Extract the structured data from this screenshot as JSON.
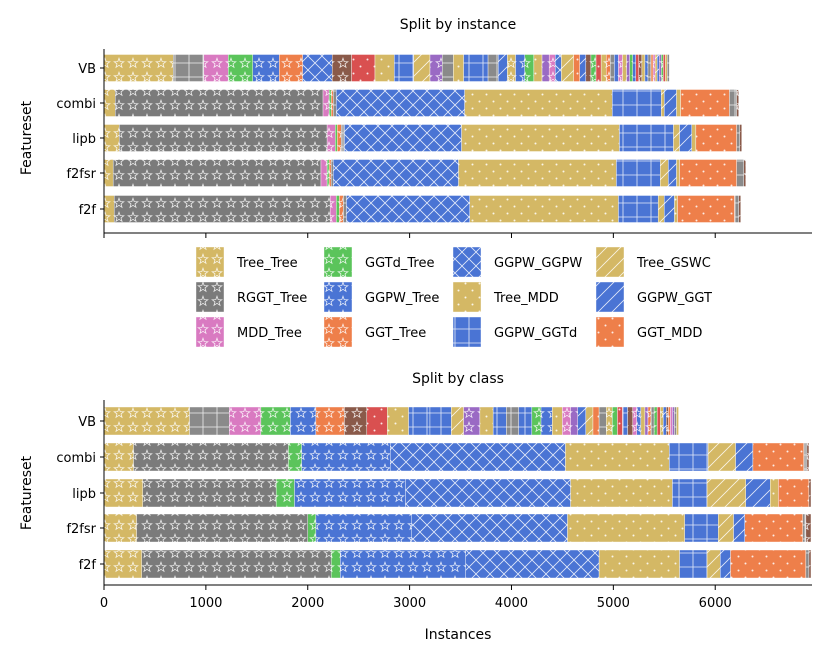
{
  "colors": {
    "Tree_Tree": "#d4b865",
    "RGGT_Tree": "#7b7b7b",
    "MDD_Tree": "#d97ac1",
    "GGTd_Tree": "#5bc45b",
    "GGPW_Tree": "#4a74d4",
    "GGT_Tree": "#ee7f4a",
    "GGPW_GGPW": "#4a74d4",
    "Tree_MDD": "#d4b865",
    "GGPW_GGTd": "#4a74d4",
    "Tree_GSWC": "#d4b865",
    "GGPW_GGT": "#4a74d4",
    "GGT_MDD": "#ee7f4a",
    "misc_brown": "#8a5a4a",
    "misc_red": "#d95050",
    "misc_purple": "#9a6ac4",
    "misc_gray": "#8a8a8a"
  },
  "legend": [
    {
      "label": "Tree_Tree",
      "pattern": "star"
    },
    {
      "label": "RGGT_Tree",
      "pattern": "star"
    },
    {
      "label": "MDD_Tree",
      "pattern": "star"
    },
    {
      "label": "GGTd_Tree",
      "pattern": "star"
    },
    {
      "label": "GGPW_Tree",
      "pattern": "star"
    },
    {
      "label": "GGT_Tree",
      "pattern": "star"
    },
    {
      "label": "GGPW_GGPW",
      "pattern": "cross"
    },
    {
      "label": "Tree_MDD",
      "pattern": "dot"
    },
    {
      "label": "GGPW_GGTd",
      "pattern": "grid"
    },
    {
      "label": "Tree_GSWC",
      "pattern": "diag"
    },
    {
      "label": "GGPW_GGT",
      "pattern": "diag"
    },
    {
      "label": "GGT_MDD",
      "pattern": "dot"
    }
  ],
  "chart_data": [
    {
      "type": "bar",
      "orientation": "horizontal-stacked",
      "title": "Split by instance",
      "ylabel": "Featureset",
      "xlabel": "",
      "xlim": [
        0,
        6950
      ],
      "categories": [
        "VB",
        "combi",
        "lipb",
        "f2fsr",
        "f2f"
      ],
      "rows": {
        "VB": [
          {
            "key": "Tree_Tree",
            "v": 680
          },
          {
            "key": "misc_gray",
            "v": 300
          },
          {
            "key": "MDD_Tree",
            "v": 240
          },
          {
            "key": "GGTd_Tree",
            "v": 240
          },
          {
            "key": "GGPW_Tree",
            "v": 260
          },
          {
            "key": "GGT_Tree",
            "v": 230
          },
          {
            "key": "GGPW_GGPW",
            "v": 290
          },
          {
            "key": "misc_brown",
            "v": 190
          },
          {
            "key": "misc_red",
            "v": 230
          },
          {
            "key": "Tree_MDD",
            "v": 190
          },
          {
            "key": "GGPW_GGTd",
            "v": 190
          },
          {
            "key": "Tree_GSWC",
            "v": 160
          },
          {
            "key": "misc_purple",
            "v": 120
          },
          {
            "key": "misc_gray",
            "v": 110
          },
          {
            "key": "Tree_MDD",
            "v": 100
          },
          {
            "key": "GGPW_GGTd",
            "v": 240
          },
          {
            "key": "misc_gray",
            "v": 100
          },
          {
            "key": "GGPW_GGT",
            "v": 90
          },
          {
            "key": "Tree_Tree",
            "v": 80
          },
          {
            "key": "GGPW_Tree",
            "v": 90
          },
          {
            "key": "GGTd_Tree",
            "v": 90
          },
          {
            "key": "Tree_MDD",
            "v": 80
          },
          {
            "key": "misc_purple",
            "v": 70
          },
          {
            "key": "MDD_Tree",
            "v": 60
          },
          {
            "key": "GGPW_GGPW",
            "v": 60
          },
          {
            "key": "Tree_GSWC",
            "v": 120
          },
          {
            "key": "GGT_MDD",
            "v": 60
          },
          {
            "key": "GGPW_GGT",
            "v": 60
          },
          {
            "key": "misc_brown",
            "v": 50
          },
          {
            "key": "GGTd_Tree",
            "v": 50
          },
          {
            "key": "misc_red",
            "v": 50
          },
          {
            "key": "Tree_Tree",
            "v": 50
          },
          {
            "key": "GGT_Tree",
            "v": 40
          },
          {
            "key": "misc_gray",
            "v": 40
          },
          {
            "key": "GGPW_Tree",
            "v": 40
          },
          {
            "key": "MDD_Tree",
            "v": 40
          },
          {
            "key": "Tree_MDD",
            "v": 40
          },
          {
            "key": "misc_purple",
            "v": 30
          },
          {
            "key": "GGTd_Tree",
            "v": 30
          },
          {
            "key": "GGPW_GGTd",
            "v": 30
          },
          {
            "key": "misc_red",
            "v": 30
          },
          {
            "key": "misc_brown",
            "v": 30
          },
          {
            "key": "Tree_Tree",
            "v": 30
          },
          {
            "key": "GGPW_Tree",
            "v": 30
          },
          {
            "key": "misc_gray",
            "v": 30
          },
          {
            "key": "GGT_MDD",
            "v": 20
          },
          {
            "key": "MDD_Tree",
            "v": 20
          },
          {
            "key": "Tree_GSWC",
            "v": 20
          },
          {
            "key": "GGPW_GGT",
            "v": 20
          },
          {
            "key": "misc_purple",
            "v": 20
          },
          {
            "key": "GGTd_Tree",
            "v": 20
          },
          {
            "key": "misc_red",
            "v": 20
          },
          {
            "key": "Tree_MDD",
            "v": 20
          },
          {
            "key": "misc_gray",
            "v": 20
          }
        ],
        "combi": [
          {
            "key": "Tree_Tree",
            "v": 110
          },
          {
            "key": "RGGT_Tree",
            "v": 2040
          },
          {
            "key": "MDD_Tree",
            "v": 60
          },
          {
            "key": "GGTd_Tree",
            "v": 20
          },
          {
            "key": "GGT_Tree",
            "v": 20
          },
          {
            "key": "misc_gray",
            "v": 30
          },
          {
            "key": "GGPW_GGPW",
            "v": 1260
          },
          {
            "key": "Tree_MDD",
            "v": 1450
          },
          {
            "key": "GGPW_GGTd",
            "v": 480
          },
          {
            "key": "Tree_GSWC",
            "v": 30
          },
          {
            "key": "GGPW_GGT",
            "v": 120
          },
          {
            "key": "Tree_MDD",
            "v": 40
          },
          {
            "key": "GGT_MDD",
            "v": 480
          },
          {
            "key": "misc_gray",
            "v": 70
          },
          {
            "key": "misc_brown",
            "v": 20
          }
        ],
        "lipb": [
          {
            "key": "Tree_Tree",
            "v": 150
          },
          {
            "key": "RGGT_Tree",
            "v": 2040
          },
          {
            "key": "MDD_Tree",
            "v": 80
          },
          {
            "key": "GGTd_Tree",
            "v": 20
          },
          {
            "key": "GGT_Tree",
            "v": 40
          },
          {
            "key": "misc_gray",
            "v": 30
          },
          {
            "key": "GGPW_GGPW",
            "v": 1150
          },
          {
            "key": "Tree_MDD",
            "v": 1550
          },
          {
            "key": "GGPW_GGTd",
            "v": 530
          },
          {
            "key": "Tree_GSWC",
            "v": 60
          },
          {
            "key": "GGPW_GGT",
            "v": 120
          },
          {
            "key": "Tree_MDD",
            "v": 40
          },
          {
            "key": "GGT_MDD",
            "v": 400
          },
          {
            "key": "misc_gray",
            "v": 30
          },
          {
            "key": "misc_brown",
            "v": 20
          }
        ],
        "f2fsr": [
          {
            "key": "Tree_Tree",
            "v": 90
          },
          {
            "key": "RGGT_Tree",
            "v": 2040
          },
          {
            "key": "MDD_Tree",
            "v": 60
          },
          {
            "key": "GGTd_Tree",
            "v": 20
          },
          {
            "key": "GGT_Tree",
            "v": 20
          },
          {
            "key": "misc_gray",
            "v": 20
          },
          {
            "key": "GGPW_GGPW",
            "v": 1230
          },
          {
            "key": "Tree_MDD",
            "v": 1550
          },
          {
            "key": "GGPW_GGTd",
            "v": 430
          },
          {
            "key": "Tree_GSWC",
            "v": 80
          },
          {
            "key": "GGPW_GGT",
            "v": 80
          },
          {
            "key": "Tree_MDD",
            "v": 30
          },
          {
            "key": "GGT_MDD",
            "v": 560
          },
          {
            "key": "misc_gray",
            "v": 70
          },
          {
            "key": "misc_brown",
            "v": 20
          }
        ],
        "f2f": [
          {
            "key": "Tree_Tree",
            "v": 100
          },
          {
            "key": "RGGT_Tree",
            "v": 2120
          },
          {
            "key": "MDD_Tree",
            "v": 60
          },
          {
            "key": "GGTd_Tree",
            "v": 30
          },
          {
            "key": "GGT_Tree",
            "v": 40
          },
          {
            "key": "misc_gray",
            "v": 30
          },
          {
            "key": "GGPW_GGPW",
            "v": 1210
          },
          {
            "key": "Tree_MDD",
            "v": 1460
          },
          {
            "key": "GGPW_GGTd",
            "v": 390
          },
          {
            "key": "Tree_GSWC",
            "v": 60
          },
          {
            "key": "GGPW_GGT",
            "v": 100
          },
          {
            "key": "Tree_MDD",
            "v": 30
          },
          {
            "key": "GGT_MDD",
            "v": 560
          },
          {
            "key": "misc_gray",
            "v": 40
          },
          {
            "key": "misc_brown",
            "v": 20
          }
        ]
      }
    },
    {
      "type": "bar",
      "orientation": "horizontal-stacked",
      "title": "Split by class",
      "ylabel": "Featureset",
      "xlabel": "Instances",
      "xlim": [
        0,
        6950
      ],
      "xticks": [
        0,
        1000,
        2000,
        3000,
        4000,
        5000,
        6000
      ],
      "categories": [
        "VB",
        "combi",
        "lipb",
        "f2fsr",
        "f2f"
      ],
      "rows": {
        "VB": [
          {
            "key": "Tree_Tree",
            "v": 840
          },
          {
            "key": "misc_gray",
            "v": 390
          },
          {
            "key": "MDD_Tree",
            "v": 310
          },
          {
            "key": "GGTd_Tree",
            "v": 290
          },
          {
            "key": "GGPW_Tree",
            "v": 250
          },
          {
            "key": "GGT_Tree",
            "v": 280
          },
          {
            "key": "misc_brown",
            "v": 220
          },
          {
            "key": "misc_red",
            "v": 200
          },
          {
            "key": "Tree_MDD",
            "v": 210
          },
          {
            "key": "GGPW_GGTd",
            "v": 210
          },
          {
            "key": "GGPW_GGTd",
            "v": 210
          },
          {
            "key": "Tree_GSWC",
            "v": 120
          },
          {
            "key": "misc_purple",
            "v": 160
          },
          {
            "key": "Tree_MDD",
            "v": 130
          },
          {
            "key": "GGPW_GGTd",
            "v": 130
          },
          {
            "key": "misc_gray",
            "v": 120
          },
          {
            "key": "GGPW_GGTd",
            "v": 130
          },
          {
            "key": "GGTd_Tree",
            "v": 90
          },
          {
            "key": "GGPW_Tree",
            "v": 110
          },
          {
            "key": "Tree_MDD",
            "v": 100
          },
          {
            "key": "MDD_Tree",
            "v": 80
          },
          {
            "key": "misc_purple",
            "v": 70
          },
          {
            "key": "GGPW_GGT",
            "v": 80
          },
          {
            "key": "Tree_GSWC",
            "v": 70
          },
          {
            "key": "GGT_MDD",
            "v": 60
          },
          {
            "key": "misc_gray",
            "v": 70
          },
          {
            "key": "Tree_Tree",
            "v": 60
          },
          {
            "key": "GGTd_Tree",
            "v": 50
          },
          {
            "key": "misc_red",
            "v": 50
          },
          {
            "key": "GGPW_GGTd",
            "v": 50
          },
          {
            "key": "misc_brown",
            "v": 50
          },
          {
            "key": "MDD_Tree",
            "v": 40
          },
          {
            "key": "GGPW_Tree",
            "v": 40
          },
          {
            "key": "Tree_MDD",
            "v": 40
          },
          {
            "key": "misc_purple",
            "v": 30
          },
          {
            "key": "GGT_Tree",
            "v": 30
          },
          {
            "key": "misc_gray",
            "v": 30
          },
          {
            "key": "GGTd_Tree",
            "v": 30
          },
          {
            "key": "misc_red",
            "v": 30
          },
          {
            "key": "Tree_Tree",
            "v": 30
          },
          {
            "key": "GGPW_GGT",
            "v": 30
          },
          {
            "key": "misc_brown",
            "v": 20
          },
          {
            "key": "GGT_MDD",
            "v": 20
          },
          {
            "key": "MDD_Tree",
            "v": 20
          },
          {
            "key": "misc_purple",
            "v": 20
          },
          {
            "key": "misc_gray",
            "v": 20
          },
          {
            "key": "Tree_MDD",
            "v": 20
          }
        ],
        "combi": [
          {
            "key": "Tree_Tree",
            "v": 290
          },
          {
            "key": "RGGT_Tree",
            "v": 1520
          },
          {
            "key": "GGTd_Tree",
            "v": 130
          },
          {
            "key": "GGPW_Tree",
            "v": 870
          },
          {
            "key": "GGPW_GGPW",
            "v": 1720
          },
          {
            "key": "Tree_MDD",
            "v": 1020
          },
          {
            "key": "GGPW_GGTd",
            "v": 380
          },
          {
            "key": "Tree_GSWC",
            "v": 270
          },
          {
            "key": "GGPW_GGT",
            "v": 170
          },
          {
            "key": "GGT_MDD",
            "v": 500
          },
          {
            "key": "misc_gray",
            "v": 30
          },
          {
            "key": "misc_brown",
            "v": 20
          }
        ],
        "lipb": [
          {
            "key": "Tree_Tree",
            "v": 380
          },
          {
            "key": "RGGT_Tree",
            "v": 1310
          },
          {
            "key": "GGTd_Tree",
            "v": 180
          },
          {
            "key": "GGPW_Tree",
            "v": 1090
          },
          {
            "key": "GGPW_GGPW",
            "v": 1620
          },
          {
            "key": "Tree_MDD",
            "v": 1000
          },
          {
            "key": "GGPW_GGTd",
            "v": 340
          },
          {
            "key": "Tree_GSWC",
            "v": 380
          },
          {
            "key": "GGPW_GGT",
            "v": 240
          },
          {
            "key": "Tree_MDD",
            "v": 80
          },
          {
            "key": "GGT_MDD",
            "v": 300
          },
          {
            "key": "misc_brown",
            "v": 20
          }
        ],
        "f2fsr": [
          {
            "key": "Tree_Tree",
            "v": 320
          },
          {
            "key": "RGGT_Tree",
            "v": 1680
          },
          {
            "key": "GGTd_Tree",
            "v": 80
          },
          {
            "key": "GGPW_Tree",
            "v": 940
          },
          {
            "key": "GGPW_GGPW",
            "v": 1530
          },
          {
            "key": "Tree_MDD",
            "v": 1150
          },
          {
            "key": "GGPW_GGTd",
            "v": 330
          },
          {
            "key": "Tree_GSWC",
            "v": 150
          },
          {
            "key": "GGPW_GGT",
            "v": 110
          },
          {
            "key": "GGT_MDD",
            "v": 570
          },
          {
            "key": "misc_gray",
            "v": 30
          },
          {
            "key": "misc_brown",
            "v": 50
          }
        ],
        "f2f": [
          {
            "key": "Tree_Tree",
            "v": 370
          },
          {
            "key": "RGGT_Tree",
            "v": 1860
          },
          {
            "key": "GGTd_Tree",
            "v": 90
          },
          {
            "key": "GGPW_Tree",
            "v": 1230
          },
          {
            "key": "GGPW_GGPW",
            "v": 1310
          },
          {
            "key": "Tree_MDD",
            "v": 790
          },
          {
            "key": "GGPW_GGTd",
            "v": 270
          },
          {
            "key": "Tree_GSWC",
            "v": 130
          },
          {
            "key": "GGPW_GGT",
            "v": 100
          },
          {
            "key": "GGT_MDD",
            "v": 740
          },
          {
            "key": "misc_gray",
            "v": 30
          },
          {
            "key": "misc_brown",
            "v": 20
          }
        ]
      }
    }
  ]
}
